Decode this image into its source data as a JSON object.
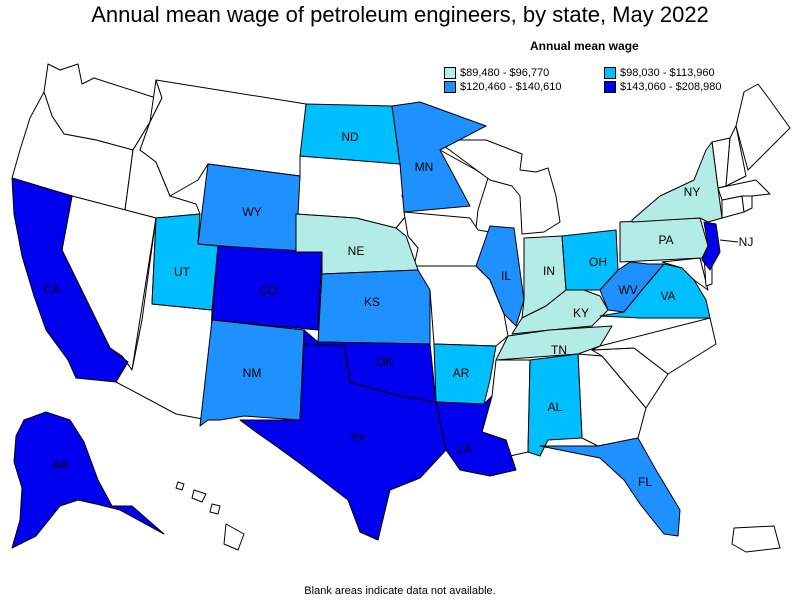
{
  "title": "Annual mean wage of petroleum engineers, by state, May 2022",
  "legend": {
    "title": "Annual mean wage",
    "items": [
      {
        "label": "$89,480 - $96,770",
        "color": "#b3ece6"
      },
      {
        "label": "$98,030 - $113,960",
        "color": "#00bfff"
      },
      {
        "label": "$120,460 - $140,610",
        "color": "#1e90ff"
      },
      {
        "label": "$143,060 - $208,980",
        "color": "#0000ee"
      }
    ]
  },
  "footnote": "Blank areas indicate data not available.",
  "states": [
    {
      "abbr": "CA",
      "class": 3
    },
    {
      "abbr": "AK",
      "class": 3
    },
    {
      "abbr": "TX",
      "class": 3
    },
    {
      "abbr": "OK",
      "class": 3
    },
    {
      "abbr": "LA",
      "class": 3
    },
    {
      "abbr": "CO",
      "class": 3
    },
    {
      "abbr": "NJ",
      "class": 3
    },
    {
      "abbr": "WY",
      "class": 2
    },
    {
      "abbr": "NM",
      "class": 2
    },
    {
      "abbr": "KS",
      "class": 2
    },
    {
      "abbr": "MN",
      "class": 2
    },
    {
      "abbr": "IL",
      "class": 2
    },
    {
      "abbr": "FL",
      "class": 2
    },
    {
      "abbr": "WV",
      "class": 2
    },
    {
      "abbr": "ND",
      "class": 1
    },
    {
      "abbr": "UT",
      "class": 1
    },
    {
      "abbr": "AR",
      "class": 1
    },
    {
      "abbr": "AL",
      "class": 1
    },
    {
      "abbr": "OH",
      "class": 1
    },
    {
      "abbr": "VA",
      "class": 1
    },
    {
      "abbr": "NE",
      "class": 0
    },
    {
      "abbr": "IN",
      "class": 0
    },
    {
      "abbr": "KY",
      "class": 0
    },
    {
      "abbr": "TN",
      "class": 0
    },
    {
      "abbr": "PA",
      "class": 0
    },
    {
      "abbr": "NY",
      "class": 0
    }
  ]
}
